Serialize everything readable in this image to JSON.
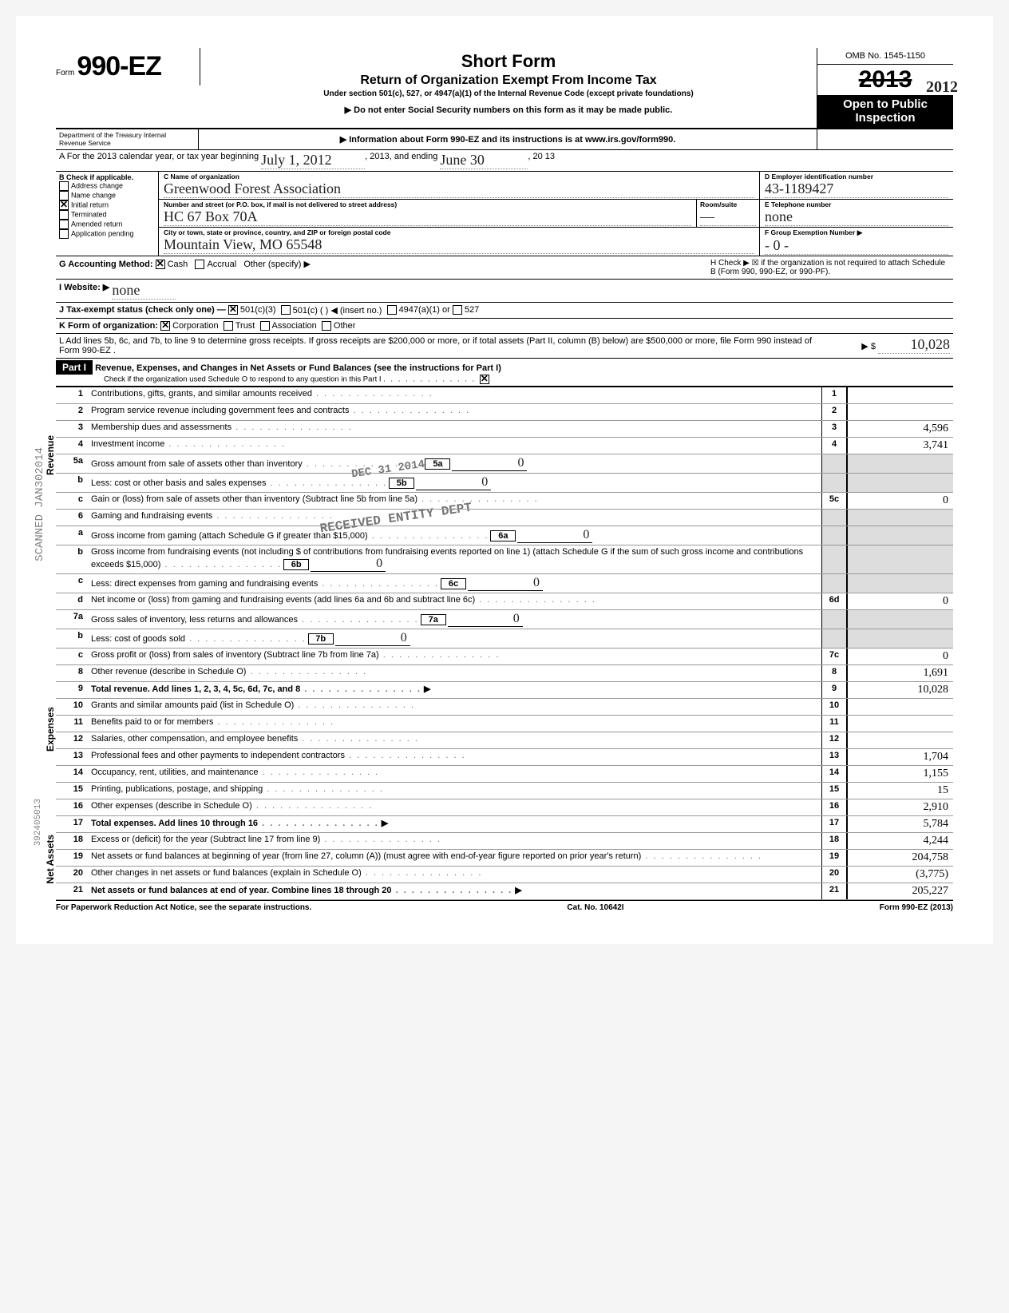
{
  "header": {
    "form_prefix": "Form",
    "form_no": "990-EZ",
    "title": "Short Form",
    "subtitle": "Return of Organization Exempt From Income Tax",
    "under": "Under section 501(c), 527, or 4947(a)(1) of the Internal Revenue Code (except private foundations)",
    "note1": "▶ Do not enter Social Security numbers on this form as it may be made public.",
    "note2": "▶ Information about Form 990-EZ and its instructions is at www.irs.gov/form990.",
    "omb": "OMB No. 1545-1150",
    "year_printed": "2013",
    "year_hand": "2012",
    "open": "Open to Public Inspection",
    "dept": "Department of the Treasury\nInternal Revenue Service"
  },
  "A": {
    "text": "A  For the 2013 calendar year, or tax year beginning",
    "begin": "July 1, 2012",
    "mid": ", 2013, and ending",
    "end": "June 30",
    "endyr": ", 20 13"
  },
  "B": {
    "label": "B  Check if applicable.",
    "items": [
      "Address change",
      "Name change",
      "Initial return",
      "Terminated",
      "Amended return",
      "Application pending"
    ],
    "checked": 2
  },
  "C": {
    "label": "C  Name of organization",
    "org": "Greenwood Forest Association",
    "addr_label": "Number and street (or P.O. box, if mail is not delivered to street address)",
    "addr": "HC 67  Box 70A",
    "room_label": "Room/suite",
    "room": "—",
    "city_label": "City or town, state or province, country, and ZIP or foreign postal code",
    "city": "Mountain View, MO 65548"
  },
  "D": {
    "label": "D Employer identification number",
    "val": "43-1189427"
  },
  "E": {
    "label": "E Telephone number",
    "val": "none"
  },
  "F": {
    "label": "F Group Exemption Number ▶",
    "val": "- 0 -"
  },
  "G": {
    "label": "G Accounting Method:",
    "cash": "Cash",
    "accrual": "Accrual",
    "other": "Other (specify) ▶"
  },
  "H": {
    "text": "H Check ▶ ☒ if the organization is not required to attach Schedule B (Form 990, 990-EZ, or 990-PF)."
  },
  "I": {
    "label": "I  Website: ▶",
    "val": "none"
  },
  "J": {
    "label": "J  Tax-exempt status (check only one) —",
    "c3": "501(c)(3)",
    "c": "501(c) (     ) ◀ (insert no.)",
    "a": "4947(a)(1) or",
    "d": "527"
  },
  "K": {
    "label": "K  Form of organization:",
    "corp": "Corporation",
    "trust": "Trust",
    "assoc": "Association",
    "other": "Other"
  },
  "L": {
    "text": "L  Add lines 5b, 6c, and 7b, to line 9 to determine gross receipts. If gross receipts are $200,000 or more, or if total assets (Part II, column (B) below) are $500,000 or more, file Form 990 instead of Form 990-EZ .",
    "arrow": "▶  $",
    "val": "10,028"
  },
  "PartI": {
    "hdr": "Part I",
    "title": "Revenue, Expenses, and Changes in Net Assets or Fund Balances (see the instructions for Part I)",
    "schO": "Check if the organization used Schedule O to respond to any question in this Part I"
  },
  "lines": [
    {
      "n": "1",
      "t": "Contributions, gifts, grants, and similar amounts received",
      "c": "1",
      "v": ""
    },
    {
      "n": "2",
      "t": "Program service revenue including government fees and contracts",
      "c": "2",
      "v": ""
    },
    {
      "n": "3",
      "t": "Membership dues and assessments",
      "c": "3",
      "v": "4,596"
    },
    {
      "n": "4",
      "t": "Investment income",
      "c": "4",
      "v": "3,741"
    },
    {
      "n": "5a",
      "t": "Gross amount from sale of assets other than inventory",
      "ib": "5a",
      "iv": "0"
    },
    {
      "n": "b",
      "t": "Less: cost or other basis and sales expenses",
      "ib": "5b",
      "iv": "0"
    },
    {
      "n": "c",
      "t": "Gain or (loss) from sale of assets other than inventory (Subtract line 5b from line 5a)",
      "c": "5c",
      "v": "0"
    },
    {
      "n": "6",
      "t": "Gaming and fundraising events"
    },
    {
      "n": "a",
      "t": "Gross income from gaming (attach Schedule G if greater than $15,000)",
      "ib": "6a",
      "iv": "0"
    },
    {
      "n": "b",
      "t": "Gross income from fundraising events (not including  $                of contributions from fundraising events reported on line 1) (attach Schedule G if the sum of such gross income and contributions exceeds $15,000)",
      "ib": "6b",
      "iv": "0"
    },
    {
      "n": "c",
      "t": "Less: direct expenses from gaming and fundraising events",
      "ib": "6c",
      "iv": "0"
    },
    {
      "n": "d",
      "t": "Net income or (loss) from gaming and fundraising events (add lines 6a and 6b and subtract line 6c)",
      "c": "6d",
      "v": "0"
    },
    {
      "n": "7a",
      "t": "Gross sales of inventory, less returns and allowances",
      "ib": "7a",
      "iv": "0"
    },
    {
      "n": "b",
      "t": "Less: cost of goods sold",
      "ib": "7b",
      "iv": "0"
    },
    {
      "n": "c",
      "t": "Gross profit or (loss) from sales of inventory (Subtract line 7b from line 7a)",
      "c": "7c",
      "v": "0"
    },
    {
      "n": "8",
      "t": "Other revenue (describe in Schedule O)",
      "c": "8",
      "v": "1,691"
    },
    {
      "n": "9",
      "t": "Total revenue. Add lines 1, 2, 3, 4, 5c, 6d, 7c, and 8",
      "c": "9",
      "v": "10,028",
      "arrow": true,
      "bold": true
    },
    {
      "n": "10",
      "t": "Grants and similar amounts paid (list in Schedule O)",
      "c": "10",
      "v": ""
    },
    {
      "n": "11",
      "t": "Benefits paid to or for members",
      "c": "11",
      "v": ""
    },
    {
      "n": "12",
      "t": "Salaries, other compensation, and employee benefits",
      "c": "12",
      "v": ""
    },
    {
      "n": "13",
      "t": "Professional fees and other payments to independent contractors",
      "c": "13",
      "v": "1,704"
    },
    {
      "n": "14",
      "t": "Occupancy, rent, utilities, and maintenance",
      "c": "14",
      "v": "1,155"
    },
    {
      "n": "15",
      "t": "Printing, publications, postage, and shipping",
      "c": "15",
      "v": "15"
    },
    {
      "n": "16",
      "t": "Other expenses (describe in Schedule O)",
      "c": "16",
      "v": "2,910"
    },
    {
      "n": "17",
      "t": "Total expenses. Add lines 10 through 16",
      "c": "17",
      "v": "5,784",
      "arrow": true,
      "bold": true
    },
    {
      "n": "18",
      "t": "Excess or (deficit) for the year (Subtract line 17 from line 9)",
      "c": "18",
      "v": "4,244"
    },
    {
      "n": "19",
      "t": "Net assets or fund balances at beginning of year (from line 27, column (A)) (must agree with end-of-year figure reported on prior year's return)",
      "c": "19",
      "v": "204,758"
    },
    {
      "n": "20",
      "t": "Other changes in net assets or fund balances (explain in Schedule O)",
      "c": "20",
      "v": "(3,775)"
    },
    {
      "n": "21",
      "t": "Net assets or fund balances at end of year. Combine lines 18 through 20",
      "c": "21",
      "v": "205,227",
      "arrow": true,
      "bold": true
    }
  ],
  "side_labels": {
    "revenue": "Revenue",
    "expenses": "Expenses",
    "netassets": "Net Assets"
  },
  "footer": {
    "left": "For Paperwork Reduction Act Notice, see the separate instructions.",
    "mid": "Cat. No. 10642I",
    "right": "Form 990-EZ (2013)"
  },
  "stamps": {
    "scanned": "SCANNED JAN302014",
    "dec": "DEC 31 2014",
    "received": "RECEIVED ENTITY DEPT",
    "dln": "392405013"
  },
  "colors": {
    "bg": "#ffffff",
    "ink": "#000000",
    "hand": "#222222",
    "shade": "#dddddd"
  }
}
